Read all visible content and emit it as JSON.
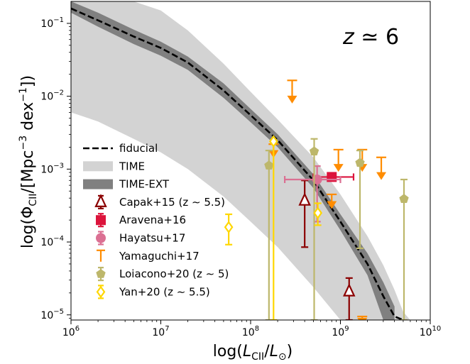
{
  "chart_data": {
    "type": "scatter",
    "title": "",
    "annotation": "z ≃ 6",
    "xlabel": "log(L_CII/L_⊙)",
    "ylabel": "log(Φ_CII/[Mpc^-3 dex^-1])",
    "xscale": "log",
    "yscale": "log",
    "xlim": [
      1000000,
      10000000000
    ],
    "ylim": [
      8.5e-06,
      0.2
    ],
    "x_ticks": [
      {
        "value": 1000000,
        "label": "10",
        "exp": "6"
      },
      {
        "value": 10000000,
        "label": "10",
        "exp": "7"
      },
      {
        "value": 100000000,
        "label": "10",
        "exp": "8"
      },
      {
        "value": 1000000000,
        "label": "10",
        "exp": "9"
      },
      {
        "value": 10000000000,
        "label": "10",
        "exp": "10"
      }
    ],
    "y_ticks": [
      {
        "value": 1e-05,
        "label": "10",
        "exp": "−5"
      },
      {
        "value": 0.0001,
        "label": "10",
        "exp": "−4"
      },
      {
        "value": 0.001,
        "label": "10",
        "exp": "−3"
      },
      {
        "value": 0.01,
        "label": "10",
        "exp": "−2"
      },
      {
        "value": 0.1,
        "label": "10",
        "exp": "−1"
      }
    ],
    "legend_position": "lower-left",
    "legend": [
      {
        "label": "fiducial",
        "kind": "dashed-line",
        "color": "#000000"
      },
      {
        "label": "TIME",
        "kind": "band",
        "color": "#d3d3d3"
      },
      {
        "label": "TIME-EXT",
        "kind": "band",
        "color": "#808080"
      },
      {
        "label": "Capak+15 (z ∼ 5.5)",
        "kind": "open-triangle",
        "color": "#8b0000"
      },
      {
        "label": "Aravena+16",
        "kind": "square",
        "color": "#dc143c"
      },
      {
        "label": "Hayatsu+17",
        "kind": "circle",
        "color": "#db7093"
      },
      {
        "label": "Yamaguchi+17",
        "kind": "upper-limit",
        "color": "#ff8c00"
      },
      {
        "label": "Loiacono+20 (z ∼ 5)",
        "kind": "pentagon",
        "color": "#bdb76b"
      },
      {
        "label": "Yan+20 (z ∼ 5.5)",
        "kind": "open-diamond",
        "color": "#ffd700"
      }
    ],
    "fiducial": {
      "x": [
        1000000,
        2000000,
        5000000,
        10000000,
        20000000,
        50000000,
        100000000,
        200000000,
        500000000,
        1000000000,
        2000000000,
        3000000000,
        4000000000,
        5000000000
      ],
      "y": [
        0.16,
        0.11,
        0.066,
        0.046,
        0.029,
        0.012,
        0.0055,
        0.0025,
        0.0007,
        0.00019,
        5e-05,
        1.8e-05,
        9.5e-06,
        8.5e-06
      ]
    },
    "time_band": {
      "x": [
        1000000,
        2000000,
        5000000,
        10000000,
        20000000,
        50000000,
        100000000,
        200000000,
        500000000,
        1000000000,
        2000000000,
        3000000000,
        4000000000,
        5000000000,
        6000000000
      ],
      "upper": [
        0.2,
        0.2,
        0.2,
        0.15,
        0.08,
        0.028,
        0.0115,
        0.0048,
        0.00145,
        0.00045,
        0.00012,
        4.8e-05,
        2.2e-05,
        1.1e-05,
        8.5e-06
      ],
      "lower": [
        0.006,
        0.0045,
        0.0026,
        0.0017,
        0.001,
        0.00042,
        0.00019,
        8.5e-05,
        2.4e-05,
        8.5e-06,
        8.5e-06,
        8.5e-06,
        8.5e-06,
        8.5e-06,
        8.5e-06
      ]
    },
    "time_ext_band": {
      "x": [
        1000000,
        2000000,
        5000000,
        10000000,
        20000000,
        50000000,
        100000000,
        200000000,
        500000000,
        1000000000,
        2000000000,
        3000000000,
        4000000000
      ],
      "upper": [
        0.2,
        0.14,
        0.082,
        0.056,
        0.035,
        0.015,
        0.0067,
        0.003,
        0.00085,
        0.00024,
        7e-05,
        2.8e-05,
        1.3e-05
      ],
      "lower": [
        0.14,
        0.09,
        0.052,
        0.036,
        0.023,
        0.0095,
        0.0044,
        0.002,
        0.00055,
        0.000145,
        3.5e-05,
        8.5e-06,
        8.5e-06
      ]
    },
    "series": [
      {
        "name": "Capak+15 (z ∼ 5.5)",
        "marker": "open-triangle",
        "color": "#8b0000",
        "points": [
          {
            "x": 400000000,
            "y": 0.00037,
            "ylo": 8.5e-05,
            "yhi": 0.0007
          },
          {
            "x": 1250000000,
            "y": 2.1e-05,
            "ylo": 8.5e-06,
            "yhi": 3.2e-05
          }
        ]
      },
      {
        "name": "Aravena+16",
        "marker": "square",
        "color": "#dc143c",
        "points": [
          {
            "x": 800000000,
            "y": 0.00078,
            "xlo": 500000000,
            "xhi": 1400000000
          }
        ]
      },
      {
        "name": "Hayatsu+17",
        "marker": "circle",
        "color": "#db7093",
        "points": [
          {
            "x": 550000000,
            "y": 0.00072,
            "xlo": 240000000,
            "xhi": 1000000000,
            "ylo": 0.00019,
            "yhi": 0.0011
          }
        ]
      },
      {
        "name": "Yamaguchi+17",
        "marker": "upper-limit",
        "color": "#ff8c00",
        "points": [
          {
            "x": 290000000,
            "y": 0.0165,
            "limit": 0.0095
          },
          {
            "x": 950000000,
            "y": 0.00185,
            "limit": 0.0011
          },
          {
            "x": 1750000000,
            "y": 0.00185,
            "limit": 0.0011
          },
          {
            "x": 2850000000,
            "y": 0.00145,
            "limit": 0.00085
          },
          {
            "x": 800000000,
            "y": 0.00045,
            "limit": 0.00034
          },
          {
            "x": 180000000,
            "y": 0.0022,
            "limit": 0.0017
          },
          {
            "x": 1750000000,
            "y": 9.5e-06,
            "limit": 8.5e-06
          }
        ]
      },
      {
        "name": "Loiacono+20 (z ∼ 5)",
        "marker": "pentagon",
        "color": "#bdb76b",
        "points": [
          {
            "x": 160000000,
            "y": 0.00112,
            "ylo": 8.5e-06,
            "yhi": 0.0018
          },
          {
            "x": 510000000,
            "y": 0.00175,
            "ylo": 8.5e-06,
            "yhi": 0.0026
          },
          {
            "x": 1650000000,
            "y": 0.00122,
            "ylo": 8.2e-05,
            "yhi": 0.0018
          },
          {
            "x": 5100000000,
            "y": 0.00039,
            "ylo": 8.5e-06,
            "yhi": 0.00072
          }
        ]
      },
      {
        "name": "Yan+20 (z ∼ 5.5)",
        "marker": "open-diamond",
        "color": "#ffd700",
        "points": [
          {
            "x": 180000000,
            "y": 0.0024,
            "ylo": 8.5e-06,
            "yhi": 0.0025
          },
          {
            "x": 57000000,
            "y": 0.00016,
            "ylo": 9.2e-05,
            "yhi": 0.00024
          },
          {
            "x": 560000000,
            "y": 0.00025,
            "ylo": 0.00017,
            "yhi": 0.00034
          }
        ]
      }
    ]
  }
}
